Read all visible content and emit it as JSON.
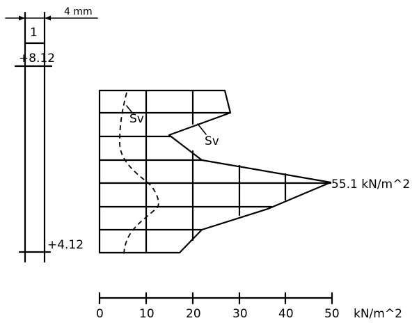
{
  "wall": {
    "thickness_label": "4 mm",
    "layer_label": "1",
    "top_level": "+8.12",
    "bottom_level": "+4.12"
  },
  "diagram": {
    "sv_label_upper": "Sv",
    "sv_label_lower": "Sv",
    "peak_label": "55.1 kN/m^2"
  },
  "axis": {
    "ticks": [
      "0",
      "10",
      "20",
      "30",
      "40",
      "50"
    ],
    "unit": "kN/m^2"
  }
}
